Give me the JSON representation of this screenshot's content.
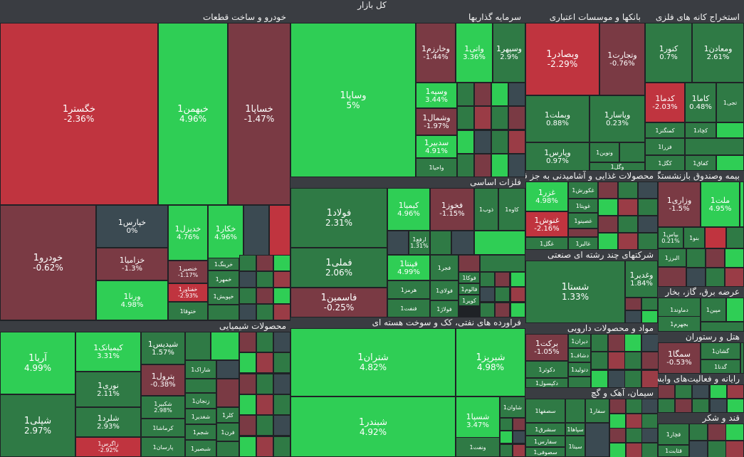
{
  "title": "کل بازار",
  "colors": {
    "strong_up": "#2fce55",
    "up": "#2f7a45",
    "dark": "#3b4a52",
    "down": "#7a3a44",
    "strong_down": "#c0343f",
    "mid_down": "#9a3c46"
  },
  "chart_data": {
    "type": "treemap",
    "title": "کل بازار",
    "sectors": [
      {
        "name": "خودرو و ساخت قطعات",
        "stocks": [
          {
            "name": "خگستر1",
            "change": -2.36
          },
          {
            "name": "خبهمن1",
            "change": 4.96
          },
          {
            "name": "خساپا1",
            "change": -1.47
          },
          {
            "name": "خودرو1",
            "change": -0.62
          },
          {
            "name": "خپارس1",
            "change": 0
          },
          {
            "name": "خزامیا1",
            "change": -1.3
          },
          {
            "name": "ورنا1",
            "change": 4.98
          },
          {
            "name": "خدیزل1",
            "change": 4.76
          },
          {
            "name": "خکار1",
            "change": 4.96
          },
          {
            "name": "خنصیر1",
            "change": -1.17
          },
          {
            "name": "خفناور1",
            "change": -2.93
          },
          {
            "name": "خریخت1",
            "change": null
          },
          {
            "name": "خمهر1",
            "change": null
          },
          {
            "name": "ختوقا1",
            "change": null
          },
          {
            "name": "خپویش1",
            "change": null
          },
          {
            "name": "خرینگ1",
            "change": null
          }
        ]
      },
      {
        "name": "سرمایه گذاریها",
        "stocks": [
          {
            "name": "وساپا1",
            "change": 5
          },
          {
            "name": "وخارزم1",
            "change": -1.44
          },
          {
            "name": "واتی1",
            "change": 3.36
          },
          {
            "name": "وسپهر1",
            "change": 2.9
          },
          {
            "name": "وسپه1",
            "change": 3.44
          },
          {
            "name": "وشمال1",
            "change": -1.97
          },
          {
            "name": "سدبیر1",
            "change": 4.91
          },
          {
            "name": "واحیا1",
            "change": null
          }
        ]
      },
      {
        "name": "بانکها و موسسات اعتباری",
        "stocks": [
          {
            "name": "وبصادر1",
            "change": -2.29
          },
          {
            "name": "وتجارت1",
            "change": -0.76
          },
          {
            "name": "وبملت1",
            "change": 0.88
          },
          {
            "name": "وپاسار1",
            "change": 0.23
          },
          {
            "name": "وپارس1",
            "change": 0.97
          },
          {
            "name": "ونوین1",
            "change": null
          },
          {
            "name": "وگل1",
            "change": null
          }
        ]
      },
      {
        "name": "استخراج کانه های فلزی",
        "stocks": [
          {
            "name": "کنور1",
            "change": 0.7
          },
          {
            "name": "ومعادن1",
            "change": 2.61
          },
          {
            "name": "کدما1",
            "change": -2.03
          },
          {
            "name": "کاما1",
            "change": 0.48
          },
          {
            "name": "کچاد1",
            "change": null
          },
          {
            "name": "کمنگنز1",
            "change": null
          },
          {
            "name": "فزرا1",
            "change": null
          },
          {
            "name": "کگل1",
            "change": null
          },
          {
            "name": "کفاق1",
            "change": null
          },
          {
            "name": "تجی1",
            "change": null
          }
        ]
      },
      {
        "name": "فلزات اساسی",
        "stocks": [
          {
            "name": "فولاد1",
            "change": 2.31
          },
          {
            "name": "کیمیا1",
            "change": 4.96
          },
          {
            "name": "فخوز1",
            "change": -1.15
          },
          {
            "name": "ذوب1",
            "change": null
          },
          {
            "name": "کاوه1",
            "change": null
          },
          {
            "name": "فملی1",
            "change": 2.06
          },
          {
            "name": "ارفع1",
            "change": 1.31
          },
          {
            "name": "فپنتا1",
            "change": 4.99
          },
          {
            "name": "فجر1",
            "change": null
          },
          {
            "name": "هرمز1",
            "change": null
          },
          {
            "name": "فاسمین1",
            "change": -0.25
          },
          {
            "name": "فنفت1",
            "change": null
          },
          {
            "name": "فولای1",
            "change": null
          },
          {
            "name": "فولاژ1",
            "change": null
          },
          {
            "name": "فوکا1",
            "change": null
          },
          {
            "name": "فالوم1",
            "change": null
          },
          {
            "name": "کویر1",
            "change": null
          }
        ]
      },
      {
        "name": "محصولات غذایی و آشامیدنی به جز قند و شکر",
        "stocks": [
          {
            "name": "غزر1",
            "change": 4.98
          },
          {
            "name": "غنوش1",
            "change": -2.16
          },
          {
            "name": "غکورش1",
            "change": null
          },
          {
            "name": "غویتا1",
            "change": null
          },
          {
            "name": "غصینو1",
            "change": null
          },
          {
            "name": "غگل1",
            "change": null
          },
          {
            "name": "غالبر1",
            "change": null
          }
        ]
      },
      {
        "name": "بیمه وصندوق بازنشستگی",
        "stocks": [
          {
            "name": "وزاری1",
            "change": -1.5
          },
          {
            "name": "ملت1",
            "change": 4.95
          },
          {
            "name": "بپاس1",
            "change": 0.21
          },
          {
            "name": "بنو1",
            "change": null
          },
          {
            "name": "البرز1",
            "change": null
          }
        ]
      },
      {
        "name": "شرکتهای چند رشته ای صنعتی",
        "stocks": [
          {
            "name": "شستا1",
            "change": 1.33
          },
          {
            "name": "وغدیر1",
            "change": 1.84
          }
        ]
      },
      {
        "name": "عرضه برق، گاز، بخار",
        "stocks": [
          {
            "name": "دماوند1",
            "change": null
          },
          {
            "name": "مپین1",
            "change": null
          },
          {
            "name": "بجهرم1",
            "change": null
          }
        ]
      },
      {
        "name": "محصولات شیمیایی",
        "stocks": [
          {
            "name": "آریا1",
            "change": 4.99
          },
          {
            "name": "شپلی1",
            "change": 2.97
          },
          {
            "name": "کیمیاتک1",
            "change": 3.31
          },
          {
            "name": "نوری1",
            "change": 2.11
          },
          {
            "name": "شلرد1",
            "change": 2.93
          },
          {
            "name": "زاگرس1",
            "change": -2.92
          },
          {
            "name": "شیدیس1",
            "change": 1.57
          },
          {
            "name": "پترول1",
            "change": -0.38
          },
          {
            "name": "شکبیر1",
            "change": 2.98
          },
          {
            "name": "کرماشا1",
            "change": null
          },
          {
            "name": "پارسان1",
            "change": null
          },
          {
            "name": "شاراک1",
            "change": null
          },
          {
            "name": "زنجان1",
            "change": null
          },
          {
            "name": "شغدیر1",
            "change": null
          },
          {
            "name": "شجم1",
            "change": null
          },
          {
            "name": "شبصیر1",
            "change": null
          },
          {
            "name": "کلر1",
            "change": null
          },
          {
            "name": "فرن1",
            "change": null
          }
        ]
      },
      {
        "name": "فراورده های نفتی، کک و سوخت هسته ای",
        "stocks": [
          {
            "name": "شتران1",
            "change": 4.82
          },
          {
            "name": "شبندر1",
            "change": 4.92
          },
          {
            "name": "شبریز1",
            "change": 4.98
          },
          {
            "name": "شسپا1",
            "change": 3.47
          },
          {
            "name": "شاوان1",
            "change": null
          },
          {
            "name": "ونفت1",
            "change": null
          }
        ]
      },
      {
        "name": "مواد و محصولات دارویی",
        "stocks": [
          {
            "name": "برکت1",
            "change": -1.05
          },
          {
            "name": "دیران1",
            "change": null
          },
          {
            "name": "دشاف1",
            "change": null
          },
          {
            "name": "دتولید1",
            "change": null
          },
          {
            "name": "دکوثر1",
            "change": null
          },
          {
            "name": "دکپسول1",
            "change": null
          }
        ]
      },
      {
        "name": "هتل و رستوران",
        "stocks": [
          {
            "name": "سمگا1",
            "change": -0.53
          },
          {
            "name": "گشان1",
            "change": null
          },
          {
            "name": "گدنا1",
            "change": null
          }
        ]
      },
      {
        "name": "رایانه و فعالیت‌های وابسته به آن",
        "stocks": []
      },
      {
        "name": "سیمان، آهک و گچ",
        "stocks": [
          {
            "name": "سصفها1",
            "change": null
          },
          {
            "name": "سشرق1",
            "change": null
          },
          {
            "name": "سفارس1",
            "change": null
          },
          {
            "name": "سصوفی1",
            "change": null
          },
          {
            "name": "سپاها1",
            "change": null
          },
          {
            "name": "سفار1",
            "change": null
          },
          {
            "name": "سیتا1",
            "change": null
          }
        ]
      },
      {
        "name": "قند و شکر",
        "stocks": [
          {
            "name": "قچار1",
            "change": null
          },
          {
            "name": "قثابت1",
            "change": null
          }
        ]
      }
    ]
  }
}
